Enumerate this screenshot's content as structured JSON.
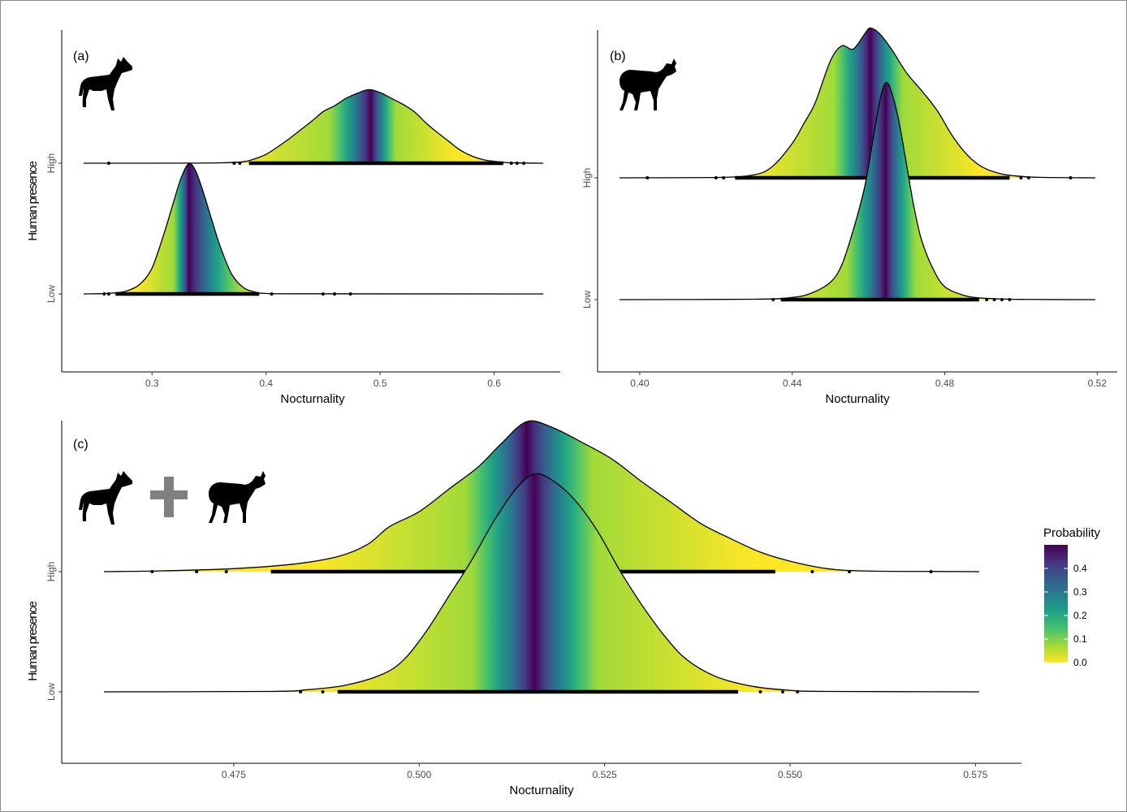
{
  "colorscale": [
    "#fde725",
    "#a0da39",
    "#4ac16d",
    "#1fa187",
    "#277f8e",
    "#365c8d",
    "#46327e",
    "#440154"
  ],
  "legend": {
    "title": "Probability",
    "ticks": [
      "0.0",
      "0.1",
      "0.2",
      "0.3",
      "0.4"
    ],
    "tick_values": [
      0,
      0.1,
      0.2,
      0.3,
      0.4
    ],
    "max": 0.5
  },
  "chart_data": [
    {
      "type": "ridgeline",
      "panel_label": "(a)",
      "icon": "dog-silhouette-icon",
      "xlabel": "Nocturnality",
      "ylabel": "Human presence",
      "xlim": [
        0.24,
        0.643
      ],
      "xticks": [
        0.3,
        0.4,
        0.5,
        0.6
      ],
      "xtick_labels": [
        "0.3",
        "0.4",
        "0.5",
        "0.6"
      ],
      "categories": [
        "Low",
        "High"
      ],
      "series": [
        {
          "name": "Low",
          "peak": 0.332,
          "height": 1.82,
          "density": [
            [
              0.24,
              0
            ],
            [
              0.255,
              0.002
            ],
            [
              0.27,
              0.01
            ],
            [
              0.28,
              0.03
            ],
            [
              0.29,
              0.08
            ],
            [
              0.3,
              0.2
            ],
            [
              0.31,
              0.45
            ],
            [
              0.318,
              0.68
            ],
            [
              0.325,
              0.88
            ],
            [
              0.332,
              1.0
            ],
            [
              0.338,
              0.95
            ],
            [
              0.345,
              0.78
            ],
            [
              0.352,
              0.58
            ],
            [
              0.36,
              0.36
            ],
            [
              0.37,
              0.15
            ],
            [
              0.38,
              0.05
            ],
            [
              0.39,
              0.015
            ],
            [
              0.4,
              0.004
            ],
            [
              0.43,
              0.001
            ],
            [
              0.643,
              0
            ]
          ],
          "rug_range": [
            0.268,
            0.394
          ],
          "rug_points": [
            0.258,
            0.262,
            0.405,
            0.45,
            0.46,
            0.474
          ]
        },
        {
          "name": "High",
          "peak": 0.492,
          "height": 1.03,
          "density": [
            [
              0.24,
              0
            ],
            [
              0.33,
              0.001
            ],
            [
              0.36,
              0.005
            ],
            [
              0.38,
              0.02
            ],
            [
              0.39,
              0.06
            ],
            [
              0.4,
              0.12
            ],
            [
              0.41,
              0.22
            ],
            [
              0.42,
              0.33
            ],
            [
              0.43,
              0.45
            ],
            [
              0.44,
              0.57
            ],
            [
              0.45,
              0.7
            ],
            [
              0.46,
              0.78
            ],
            [
              0.47,
              0.88
            ],
            [
              0.48,
              0.95
            ],
            [
              0.49,
              1.0
            ],
            [
              0.5,
              0.96
            ],
            [
              0.51,
              0.88
            ],
            [
              0.52,
              0.8
            ],
            [
              0.53,
              0.7
            ],
            [
              0.54,
              0.55
            ],
            [
              0.55,
              0.42
            ],
            [
              0.56,
              0.3
            ],
            [
              0.57,
              0.18
            ],
            [
              0.58,
              0.1
            ],
            [
              0.59,
              0.05
            ],
            [
              0.6,
              0.025
            ],
            [
              0.61,
              0.01
            ],
            [
              0.625,
              0.003
            ],
            [
              0.643,
              0
            ]
          ],
          "rug_range": [
            0.385,
            0.608
          ],
          "rug_points": [
            0.262,
            0.372,
            0.377,
            0.615,
            0.62,
            0.626
          ]
        }
      ]
    },
    {
      "type": "ridgeline",
      "panel_label": "(b)",
      "icon": "duiker-silhouette-icon",
      "xlabel": "Nocturnality",
      "ylabel": "",
      "xlim": [
        0.3947,
        0.5195
      ],
      "xticks": [
        0.4,
        0.44,
        0.48,
        0.52
      ],
      "xtick_labels": [
        "0.40",
        "0.44",
        "0.48",
        "0.52"
      ],
      "categories": [
        "Low",
        "High"
      ],
      "series": [
        {
          "name": "Low",
          "peak": 0.4645,
          "height": 1.78,
          "density": [
            [
              0.3947,
              0
            ],
            [
              0.43,
              0.002
            ],
            [
              0.44,
              0.01
            ],
            [
              0.445,
              0.03
            ],
            [
              0.45,
              0.08
            ],
            [
              0.453,
              0.16
            ],
            [
              0.456,
              0.32
            ],
            [
              0.459,
              0.52
            ],
            [
              0.461,
              0.72
            ],
            [
              0.463,
              0.92
            ],
            [
              0.4645,
              1.0
            ],
            [
              0.466,
              0.96
            ],
            [
              0.468,
              0.82
            ],
            [
              0.47,
              0.62
            ],
            [
              0.472,
              0.42
            ],
            [
              0.474,
              0.27
            ],
            [
              0.477,
              0.14
            ],
            [
              0.48,
              0.06
            ],
            [
              0.485,
              0.02
            ],
            [
              0.49,
              0.007
            ],
            [
              0.5,
              0.001
            ],
            [
              0.5195,
              0
            ]
          ],
          "rug_range": [
            0.437,
            0.489
          ],
          "rug_points": [
            0.435,
            0.491,
            0.493,
            0.495,
            0.497
          ]
        },
        {
          "name": "High",
          "peak": 0.4605,
          "height": 1.23,
          "density": [
            [
              0.3947,
              0
            ],
            [
              0.42,
              0.002
            ],
            [
              0.43,
              0.02
            ],
            [
              0.435,
              0.08
            ],
            [
              0.44,
              0.23
            ],
            [
              0.443,
              0.36
            ],
            [
              0.446,
              0.5
            ],
            [
              0.45,
              0.78
            ],
            [
              0.453,
              0.88
            ],
            [
              0.456,
              0.86
            ],
            [
              0.459,
              0.96
            ],
            [
              0.4605,
              1.0
            ],
            [
              0.463,
              0.96
            ],
            [
              0.466,
              0.86
            ],
            [
              0.47,
              0.7
            ],
            [
              0.474,
              0.58
            ],
            [
              0.478,
              0.45
            ],
            [
              0.482,
              0.28
            ],
            [
              0.486,
              0.15
            ],
            [
              0.49,
              0.07
            ],
            [
              0.495,
              0.025
            ],
            [
              0.5,
              0.01
            ],
            [
              0.505,
              0.003
            ],
            [
              0.5195,
              0
            ]
          ],
          "rug_range": [
            0.425,
            0.497
          ],
          "rug_points": [
            0.402,
            0.42,
            0.422,
            0.5,
            0.502,
            0.513
          ]
        }
      ]
    },
    {
      "type": "ridgeline",
      "panel_label": "(c)",
      "icon": "dog-plus-duiker-icon",
      "xlabel": "Nocturnality",
      "ylabel": "Human presence",
      "xlim": [
        0.4575,
        0.5755
      ],
      "xticks": [
        0.475,
        0.5,
        0.525,
        0.55,
        0.575
      ],
      "xtick_labels": [
        "0.475",
        "0.500",
        "0.525",
        "0.550",
        "0.575"
      ],
      "categories": [
        "Low",
        "High"
      ],
      "series": [
        {
          "name": "Low",
          "peak": 0.5155,
          "height": 1.8,
          "density": [
            [
              0.4575,
              0
            ],
            [
              0.48,
              0.002
            ],
            [
              0.485,
              0.01
            ],
            [
              0.49,
              0.03
            ],
            [
              0.495,
              0.08
            ],
            [
              0.498,
              0.15
            ],
            [
              0.501,
              0.28
            ],
            [
              0.504,
              0.44
            ],
            [
              0.507,
              0.6
            ],
            [
              0.51,
              0.78
            ],
            [
              0.513,
              0.93
            ],
            [
              0.5155,
              1.0
            ],
            [
              0.518,
              0.97
            ],
            [
              0.521,
              0.88
            ],
            [
              0.524,
              0.74
            ],
            [
              0.527,
              0.56
            ],
            [
              0.53,
              0.4
            ],
            [
              0.533,
              0.26
            ],
            [
              0.536,
              0.15
            ],
            [
              0.54,
              0.07
            ],
            [
              0.545,
              0.025
            ],
            [
              0.55,
              0.007
            ],
            [
              0.555,
              0.002
            ],
            [
              0.5755,
              0
            ]
          ],
          "rug_range": [
            0.489,
            0.543
          ],
          "rug_points": [
            0.484,
            0.487,
            0.546,
            0.549,
            0.551
          ]
        },
        {
          "name": "High",
          "peak": 0.5145,
          "height": 1.24,
          "density": [
            [
              0.4575,
              0
            ],
            [
              0.465,
              0.005
            ],
            [
              0.475,
              0.02
            ],
            [
              0.483,
              0.05
            ],
            [
              0.489,
              0.1
            ],
            [
              0.493,
              0.18
            ],
            [
              0.496,
              0.3
            ],
            [
              0.5,
              0.4
            ],
            [
              0.504,
              0.55
            ],
            [
              0.508,
              0.7
            ],
            [
              0.511,
              0.85
            ],
            [
              0.5145,
              1.0
            ],
            [
              0.518,
              0.96
            ],
            [
              0.522,
              0.86
            ],
            [
              0.526,
              0.75
            ],
            [
              0.53,
              0.6
            ],
            [
              0.534,
              0.46
            ],
            [
              0.538,
              0.32
            ],
            [
              0.542,
              0.22
            ],
            [
              0.546,
              0.13
            ],
            [
              0.55,
              0.07
            ],
            [
              0.555,
              0.02
            ],
            [
              0.56,
              0.005
            ],
            [
              0.57,
              0.001
            ],
            [
              0.5755,
              0
            ]
          ],
          "rug_range": [
            0.48,
            0.548
          ],
          "rug_points": [
            0.464,
            0.47,
            0.474,
            0.553,
            0.558,
            0.569
          ]
        }
      ]
    }
  ]
}
